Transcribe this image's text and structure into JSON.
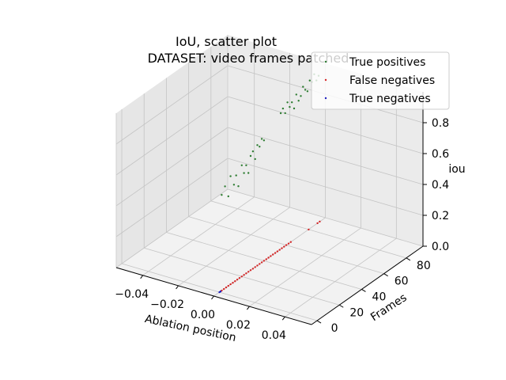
{
  "chart_data": {
    "type": "scatter",
    "projection": "3d",
    "title": "IoU, scatter plot",
    "subtitle": "DATASET: video frames patched",
    "xlabel": "Ablation position",
    "ylabel": "Frames",
    "zlabel": "iou",
    "xlim": [
      -0.055,
      0.055
    ],
    "ylim": [
      -5,
      95
    ],
    "zlim": [
      0,
      1.0
    ],
    "x_ticks": [
      -0.04,
      -0.02,
      0.0,
      0.02,
      0.04
    ],
    "x_tick_labels": [
      "−0.04",
      "−0.02",
      "0.00",
      "0.02",
      "0.04"
    ],
    "y_ticks": [
      0,
      20,
      40,
      60,
      80
    ],
    "y_tick_labels": [
      "0",
      "20",
      "40",
      "60",
      "80"
    ],
    "z_ticks": [
      0.0,
      0.2,
      0.4,
      0.6,
      0.8
    ],
    "z_tick_labels": [
      "0.0",
      "0.2",
      "0.4",
      "0.6",
      "0.8"
    ],
    "grid": true,
    "legend_position": "top-right",
    "series": [
      {
        "name": "True positives",
        "color": "#2e7d32",
        "points": [
          [
            0,
            2,
            0.62
          ],
          [
            0,
            5,
            0.66
          ],
          [
            0,
            8,
            0.58
          ],
          [
            0,
            10,
            0.7
          ],
          [
            0,
            13,
            0.63
          ],
          [
            0,
            15,
            0.68
          ],
          [
            0,
            17,
            0.6
          ],
          [
            0,
            20,
            0.72
          ],
          [
            0,
            22,
            0.66
          ],
          [
            0,
            24,
            0.7
          ],
          [
            0,
            26,
            0.64
          ],
          [
            0,
            28,
            0.74
          ],
          [
            0,
            30,
            0.76
          ],
          [
            0,
            32,
            0.7
          ],
          [
            0,
            34,
            0.78
          ],
          [
            0,
            36,
            0.76
          ],
          [
            0,
            38,
            0.8
          ],
          [
            0,
            40,
            0.78
          ],
          [
            0,
            55,
            0.88
          ],
          [
            0,
            57,
            0.9
          ],
          [
            0,
            59,
            0.86
          ],
          [
            0,
            61,
            0.92
          ],
          [
            0,
            63,
            0.88
          ],
          [
            0,
            65,
            0.9
          ],
          [
            0,
            67,
            0.85
          ],
          [
            0,
            69,
            0.93
          ],
          [
            0,
            71,
            0.88
          ],
          [
            0,
            73,
            0.9
          ],
          [
            0,
            75,
            0.95
          ],
          [
            0,
            77,
            0.92
          ],
          [
            0,
            79,
            0.9
          ],
          [
            0,
            81,
            0.96
          ],
          [
            0,
            83,
            0.94
          ],
          [
            0,
            85,
            0.98
          ],
          [
            0,
            87,
            0.93
          ],
          [
            0,
            89,
            0.95
          ]
        ]
      },
      {
        "name": "False negatives",
        "color": "#d62728",
        "points": [
          [
            0,
            2,
            0.0
          ],
          [
            0,
            4,
            0.0
          ],
          [
            0,
            6,
            0.0
          ],
          [
            0,
            8,
            0.0
          ],
          [
            0,
            10,
            0.0
          ],
          [
            0,
            12,
            0.0
          ],
          [
            0,
            14,
            0.0
          ],
          [
            0,
            16,
            0.0
          ],
          [
            0,
            18,
            0.0
          ],
          [
            0,
            20,
            0.0
          ],
          [
            0,
            22,
            0.0
          ],
          [
            0,
            24,
            0.0
          ],
          [
            0,
            26,
            0.0
          ],
          [
            0,
            28,
            0.0
          ],
          [
            0,
            30,
            0.0
          ],
          [
            0,
            32,
            0.0
          ],
          [
            0,
            34,
            0.0
          ],
          [
            0,
            36,
            0.0
          ],
          [
            0,
            38,
            0.0
          ],
          [
            0,
            40,
            0.0
          ],
          [
            0,
            42,
            0.0
          ],
          [
            0,
            44,
            0.0
          ],
          [
            0,
            46,
            0.0
          ],
          [
            0,
            48,
            0.0
          ],
          [
            0,
            50,
            0.0
          ],
          [
            0,
            52,
            0.0
          ],
          [
            0,
            54,
            0.0
          ],
          [
            0,
            56,
            0.0
          ],
          [
            0,
            58,
            0.0
          ],
          [
            0,
            60,
            0.0
          ],
          [
            0,
            62,
            0.0
          ],
          [
            0,
            64,
            0.0
          ],
          [
            0,
            80,
            0.0
          ],
          [
            0,
            88,
            0.0
          ],
          [
            0,
            90,
            0.0
          ]
        ]
      },
      {
        "name": "True negatives",
        "color": "#1f1fbf",
        "points": [
          [
            0,
            0,
            0.0
          ],
          [
            0,
            1,
            0.0
          ]
        ]
      }
    ]
  }
}
